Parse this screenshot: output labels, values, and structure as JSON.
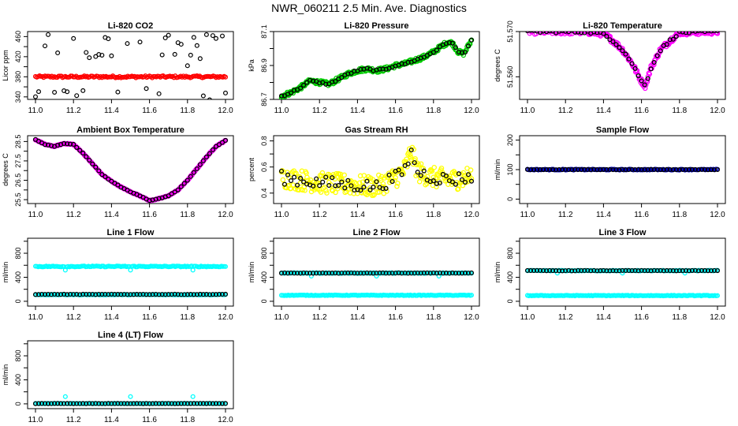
{
  "title": "NWR_060211  2.5 Min. Ave. Diagnostics",
  "chart_data": [
    {
      "type": "scatter",
      "title": "Li-820 CO2",
      "ylabel": "Licor ppm",
      "xlim": [
        11.0,
        12.0
      ],
      "xticks": [
        "11.0",
        "11.2",
        "11.4",
        "11.6",
        "11.8",
        "12.0"
      ],
      "ylim": [
        335,
        470
      ],
      "yticks": [
        340,
        360,
        380,
        400,
        420,
        440,
        460
      ],
      "yticklabels": [
        "340",
        "",
        "380",
        "",
        "420",
        "",
        "460"
      ],
      "series": [
        {
          "color": "#ff0000",
          "style": "band",
          "y": 380,
          "noise": 2
        },
        {
          "color": "#000000",
          "style": "sparse-circles",
          "y": 380,
          "spread": 80
        }
      ]
    },
    {
      "type": "scatter",
      "title": "Li-820 Pressure",
      "ylabel": "kPa",
      "xlim": [
        11.0,
        12.0
      ],
      "xticks": [
        "11.0",
        "11.2",
        "11.4",
        "11.6",
        "11.8",
        "12.0"
      ],
      "ylim": [
        86.7,
        87.1
      ],
      "yticks": [
        86.7,
        86.8,
        86.9,
        87.0,
        87.1
      ],
      "yticklabels": [
        "86.7",
        "",
        "86.9",
        "",
        "87.1"
      ],
      "series": [
        {
          "color": "#00cc00",
          "style": "dense-circles",
          "noise": 0.012,
          "x": [
            11.0,
            11.05,
            11.1,
            11.15,
            11.2,
            11.25,
            11.3,
            11.35,
            11.4,
            11.45,
            11.5,
            11.55,
            11.6,
            11.65,
            11.7,
            11.75,
            11.8,
            11.85,
            11.88,
            11.9,
            11.93,
            11.96,
            12.0
          ],
          "y": [
            86.72,
            86.74,
            86.77,
            86.81,
            86.8,
            86.79,
            86.82,
            86.85,
            86.87,
            86.88,
            86.87,
            86.88,
            86.9,
            86.91,
            86.93,
            86.95,
            86.98,
            87.02,
            87.04,
            87.03,
            86.98,
            86.97,
            87.05
          ]
        },
        {
          "color": "#000000",
          "style": "sparse-line",
          "noise": 0.005,
          "x": [
            11.0,
            11.05,
            11.1,
            11.15,
            11.2,
            11.25,
            11.3,
            11.35,
            11.4,
            11.45,
            11.5,
            11.55,
            11.6,
            11.65,
            11.7,
            11.75,
            11.8,
            11.85,
            11.88,
            11.9,
            11.93,
            11.96,
            12.0
          ],
          "y": [
            86.72,
            86.74,
            86.77,
            86.81,
            86.8,
            86.79,
            86.82,
            86.85,
            86.87,
            86.88,
            86.87,
            86.88,
            86.9,
            86.91,
            86.93,
            86.95,
            86.98,
            87.02,
            87.04,
            87.03,
            86.98,
            86.97,
            87.05
          ]
        }
      ]
    },
    {
      "type": "scatter",
      "title": "Li-820 Temperature",
      "ylabel": "degrees C",
      "xlim": [
        11.0,
        12.0
      ],
      "xticks": [
        "11.0",
        "11.2",
        "11.4",
        "11.6",
        "11.8",
        "12.0"
      ],
      "ylim": [
        51.555,
        51.57
      ],
      "yticks": [
        51.56,
        51.57
      ],
      "yticklabels": [
        "51.560",
        "51.570"
      ],
      "series": [
        {
          "color": "#ff00ff",
          "style": "dense-circles",
          "noise": 0.0006,
          "x": [
            11.0,
            11.3,
            11.4,
            11.45,
            11.5,
            11.55,
            11.6,
            11.62,
            11.65,
            11.7,
            11.75,
            11.8,
            12.0
          ],
          "y": [
            51.57,
            51.57,
            51.5695,
            51.568,
            51.566,
            51.563,
            51.559,
            51.558,
            51.562,
            51.566,
            51.568,
            51.5698,
            51.57
          ]
        },
        {
          "color": "#000000",
          "style": "sparse-line",
          "noise": 0.0003,
          "x": [
            11.0,
            11.3,
            11.4,
            11.45,
            11.5,
            11.55,
            11.6,
            11.62,
            11.65,
            11.7,
            11.75,
            11.8,
            12.0
          ],
          "y": [
            51.57,
            51.57,
            51.5695,
            51.568,
            51.566,
            51.563,
            51.559,
            51.558,
            51.562,
            51.566,
            51.568,
            51.5698,
            51.57
          ]
        }
      ]
    },
    {
      "type": "scatter",
      "title": "Ambient Box Temperature",
      "ylabel": "degrees C",
      "xlim": [
        11.0,
        12.0
      ],
      "xticks": [
        "11.0",
        "11.2",
        "11.4",
        "11.6",
        "11.8",
        "12.0"
      ],
      "ylim": [
        25.3,
        28.8
      ],
      "yticks": [
        25.5,
        26.0,
        26.5,
        27.0,
        27.5,
        28.0,
        28.5
      ],
      "yticklabels": [
        "25.5",
        "",
        "26.5",
        "",
        "27.5",
        "",
        "28.5"
      ],
      "series": [
        {
          "color": "#ff00ff",
          "style": "dense-circles",
          "noise": 0.02,
          "x": [
            11.0,
            11.05,
            11.1,
            11.15,
            11.2,
            11.25,
            11.3,
            11.35,
            11.4,
            11.45,
            11.5,
            11.55,
            11.6,
            11.65,
            11.7,
            11.75,
            11.8,
            11.85,
            11.9,
            11.95,
            12.0
          ],
          "y": [
            28.6,
            28.35,
            28.25,
            28.4,
            28.35,
            27.9,
            27.35,
            26.8,
            26.45,
            26.15,
            25.9,
            25.7,
            25.45,
            25.55,
            25.7,
            26.0,
            26.5,
            27.1,
            27.7,
            28.25,
            28.55
          ]
        },
        {
          "color": "#000000",
          "style": "sparse-line",
          "noise": 0.01,
          "x": [
            11.0,
            11.05,
            11.1,
            11.15,
            11.2,
            11.25,
            11.3,
            11.35,
            11.4,
            11.45,
            11.5,
            11.55,
            11.6,
            11.65,
            11.7,
            11.75,
            11.8,
            11.85,
            11.9,
            11.95,
            12.0
          ],
          "y": [
            28.6,
            28.35,
            28.25,
            28.4,
            28.35,
            27.9,
            27.35,
            26.8,
            26.45,
            26.15,
            25.9,
            25.7,
            25.45,
            25.55,
            25.7,
            26.0,
            26.5,
            27.1,
            27.7,
            28.25,
            28.55
          ]
        }
      ]
    },
    {
      "type": "scatter",
      "title": "Gas Stream RH",
      "ylabel": "percent",
      "xlim": [
        11.0,
        12.0
      ],
      "xticks": [
        "11.0",
        "11.2",
        "11.4",
        "11.6",
        "11.8",
        "12.0"
      ],
      "ylim": [
        0.32,
        0.84
      ],
      "yticks": [
        0.4,
        0.5,
        0.6,
        0.7,
        0.8
      ],
      "yticklabels": [
        "0.4",
        "",
        "0.6",
        "",
        "0.8"
      ],
      "series": [
        {
          "color": "#ffff00",
          "style": "dense-circles",
          "noise": 0.08,
          "x": [
            11.0,
            11.1,
            11.2,
            11.3,
            11.4,
            11.5,
            11.6,
            11.65,
            11.68,
            11.72,
            11.8,
            11.9,
            12.0
          ],
          "y": [
            0.52,
            0.5,
            0.48,
            0.47,
            0.46,
            0.45,
            0.52,
            0.58,
            0.72,
            0.56,
            0.52,
            0.5,
            0.53
          ]
        },
        {
          "color": "#000000",
          "style": "sparse-line",
          "noise": 0.05,
          "x": [
            11.0,
            11.1,
            11.2,
            11.3,
            11.4,
            11.5,
            11.6,
            11.65,
            11.68,
            11.72,
            11.8,
            11.9,
            12.0
          ],
          "y": [
            0.52,
            0.5,
            0.48,
            0.47,
            0.46,
            0.45,
            0.52,
            0.58,
            0.72,
            0.56,
            0.52,
            0.5,
            0.53
          ]
        }
      ]
    },
    {
      "type": "scatter",
      "title": "Sample Flow",
      "ylabel": "ml/min",
      "xlim": [
        11.0,
        12.0
      ],
      "xticks": [
        "11.0",
        "11.2",
        "11.4",
        "11.6",
        "11.8",
        "12.0"
      ],
      "ylim": [
        -15,
        215
      ],
      "yticks": [
        0,
        50,
        100,
        150,
        200
      ],
      "yticklabels": [
        "0",
        "",
        "100",
        "",
        "200"
      ],
      "series": [
        {
          "color": "#0000cc",
          "style": "band",
          "y": 100,
          "noise": 1.5
        },
        {
          "color": "#000000",
          "style": "sparse-line-flat",
          "y": 100,
          "noise": 0.5
        }
      ]
    },
    {
      "type": "scatter",
      "title": "Line 1 Flow",
      "ylabel": "ml/min",
      "xlim": [
        11.0,
        12.0
      ],
      "xticks": [
        "11.0",
        "11.2",
        "11.4",
        "11.6",
        "11.8",
        "12.0"
      ],
      "ylim": [
        -80,
        1050
      ],
      "yticks": [
        0,
        200,
        400,
        600,
        800,
        1000
      ],
      "yticklabels": [
        "0",
        "",
        "400",
        "",
        "800",
        ""
      ],
      "series": [
        {
          "color": "#00ffff",
          "style": "band",
          "y": 580,
          "noise": 8,
          "dips": [
            11.16,
            11.5,
            11.83
          ],
          "dip_to": 520
        },
        {
          "color": "#00ffff",
          "style": "band",
          "y": 110,
          "noise": 5
        },
        {
          "color": "#000000",
          "style": "sparse-line-flat",
          "y": 115,
          "noise": 3
        }
      ]
    },
    {
      "type": "scatter",
      "title": "Line 2 Flow",
      "ylabel": "ml/min",
      "xlim": [
        11.0,
        12.0
      ],
      "xticks": [
        "11.0",
        "11.2",
        "11.4",
        "11.6",
        "11.8",
        "12.0"
      ],
      "ylim": [
        -80,
        1050
      ],
      "yticks": [
        0,
        200,
        400,
        600,
        800,
        1000
      ],
      "yticklabels": [
        "0",
        "",
        "400",
        "",
        "800",
        ""
      ],
      "series": [
        {
          "color": "#00ffff",
          "style": "band",
          "y": 470,
          "noise": 6,
          "dips": [
            11.16,
            11.5,
            11.83
          ],
          "dip_to": 420
        },
        {
          "color": "#00ffff",
          "style": "band",
          "y": 100,
          "noise": 5
        },
        {
          "color": "#000000",
          "style": "sparse-line-flat",
          "y": 470,
          "noise": 3
        }
      ]
    },
    {
      "type": "scatter",
      "title": "Line 3 Flow",
      "ylabel": "ml/min",
      "xlim": [
        11.0,
        12.0
      ],
      "xticks": [
        "11.0",
        "11.2",
        "11.4",
        "11.6",
        "11.8",
        "12.0"
      ],
      "ylim": [
        -80,
        1050
      ],
      "yticks": [
        0,
        200,
        400,
        600,
        800,
        1000
      ],
      "yticklabels": [
        "0",
        "",
        "400",
        "",
        "800",
        ""
      ],
      "series": [
        {
          "color": "#00ffff",
          "style": "band",
          "y": 510,
          "noise": 6,
          "dips": [
            11.16,
            11.5,
            11.83
          ],
          "dip_to": 470
        },
        {
          "color": "#00ffff",
          "style": "band",
          "y": 95,
          "noise": 5
        },
        {
          "color": "#000000",
          "style": "sparse-line-flat",
          "y": 510,
          "noise": 3
        }
      ]
    },
    {
      "type": "scatter",
      "title": "Line 4 (LT) Flow",
      "ylabel": "ml/min",
      "xlim": [
        11.0,
        12.0
      ],
      "xticks": [
        "11.0",
        "11.2",
        "11.4",
        "11.6",
        "11.8",
        "12.0"
      ],
      "ylim": [
        -80,
        1050
      ],
      "yticks": [
        0,
        200,
        400,
        600,
        800,
        1000
      ],
      "yticklabels": [
        "0",
        "",
        "400",
        "",
        "800",
        ""
      ],
      "series": [
        {
          "color": "#00ffff",
          "style": "band",
          "y": 5,
          "noise": 3,
          "spikes": [
            11.16,
            11.5,
            11.83
          ],
          "spike_to": 120
        },
        {
          "color": "#000000",
          "style": "sparse-line-flat",
          "y": 5,
          "noise": 2
        }
      ]
    }
  ]
}
